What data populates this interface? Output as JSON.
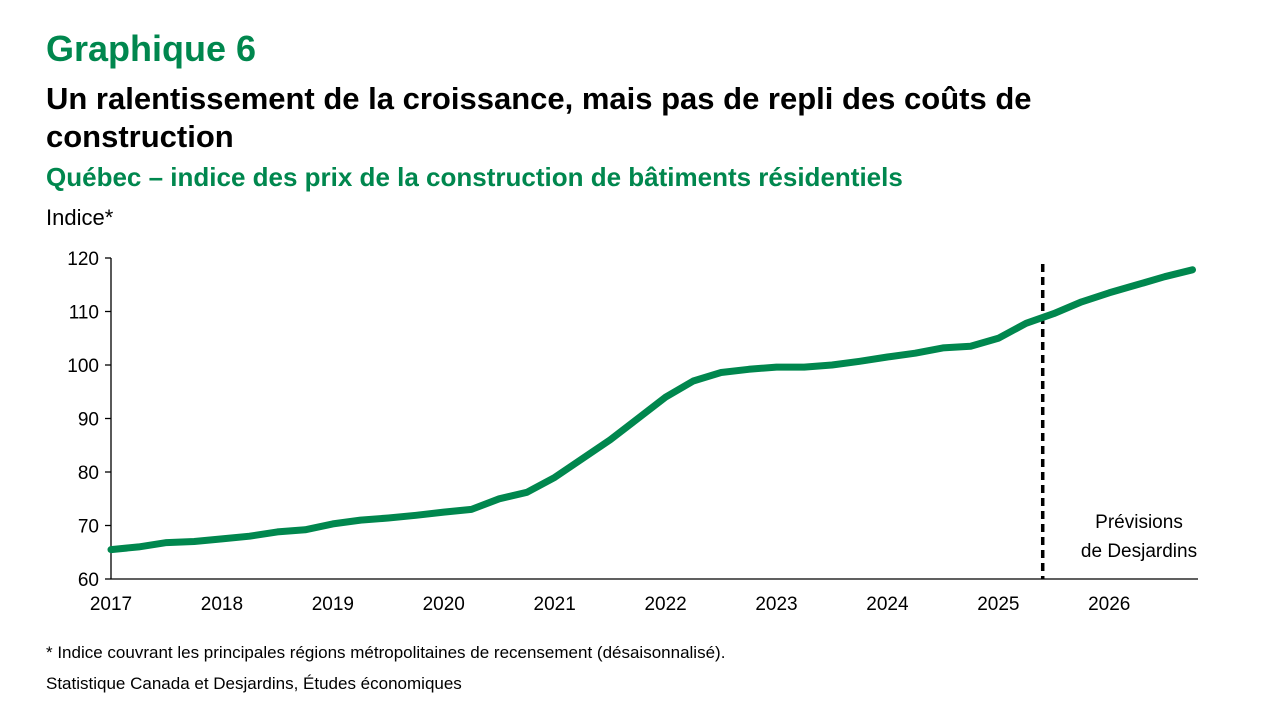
{
  "header": {
    "kicker": "Graphique 6",
    "title": "Un ralentissement de la croissance, mais pas de repli des coûts de construction",
    "subtitle": "Québec – indice des prix de la construction de bâtiments résidentiels"
  },
  "footer": {
    "note": "* Indice couvrant les principales régions métropolitaines de recensement (désaisonnalisé).",
    "source": "Statistique Canada et Desjardins, Études économiques"
  },
  "chart_data": {
    "type": "line",
    "title": "",
    "xlabel": "",
    "ylabel": "Indice*",
    "ylim": [
      60,
      120
    ],
    "xlim": [
      2017,
      2026.8
    ],
    "yticks": [
      60,
      70,
      80,
      90,
      100,
      110,
      120
    ],
    "xtick_labels": [
      "2017",
      "2018",
      "2019",
      "2020",
      "2021",
      "2022",
      "2023",
      "2024",
      "2025",
      "2026"
    ],
    "grid": false,
    "line_color": "#00874e",
    "forecast_start": 2025.4,
    "annotation": [
      "Prévisions",
      "de Desjardins"
    ],
    "x": [
      2017,
      2017.25,
      2017.5,
      2017.75,
      2018,
      2018.25,
      2018.5,
      2018.75,
      2019,
      2019.25,
      2019.5,
      2019.75,
      2020,
      2020.25,
      2020.5,
      2020.75,
      2021,
      2021.25,
      2021.5,
      2021.75,
      2022,
      2022.25,
      2022.5,
      2022.75,
      2023,
      2023.25,
      2023.5,
      2023.75,
      2024,
      2024.25,
      2024.5,
      2024.75,
      2025,
      2025.25,
      2025.5,
      2025.75,
      2026,
      2026.25,
      2026.5,
      2026.75
    ],
    "values": [
      65.5,
      66,
      66.8,
      67,
      67.5,
      68,
      68.8,
      69.2,
      70.3,
      71,
      71.4,
      71.9,
      72.5,
      73,
      75,
      76.2,
      79,
      82.5,
      86,
      90,
      94,
      97,
      98.6,
      99.2,
      99.6,
      99.6,
      100,
      100.7,
      101.5,
      102.2,
      103.2,
      103.5,
      105,
      107.8,
      109.6,
      111.8,
      113.5,
      115,
      116.5,
      117.8
    ]
  }
}
